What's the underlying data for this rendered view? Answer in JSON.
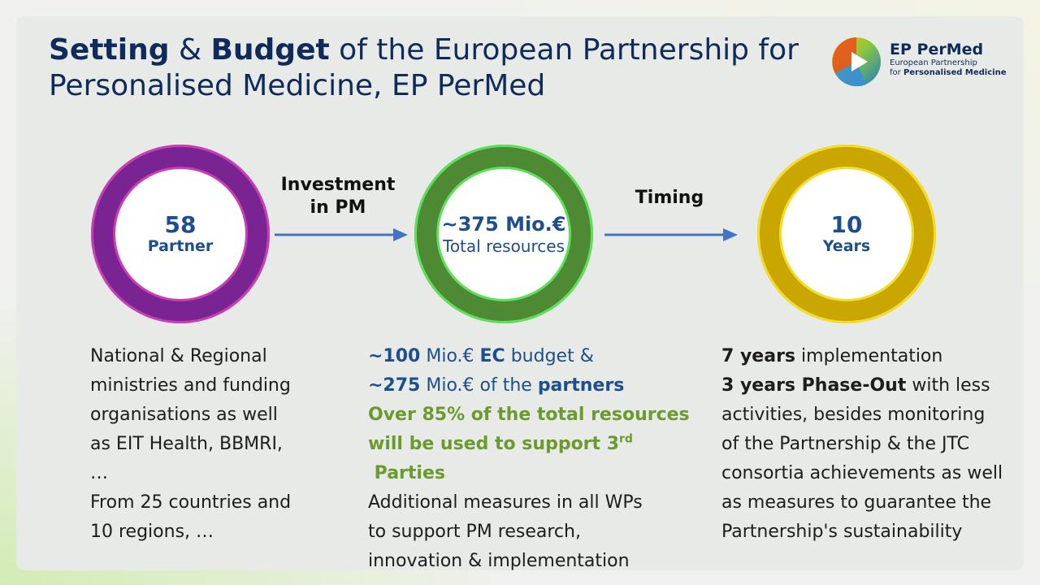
{
  "title": {
    "w1": "Setting",
    "w2": " & ",
    "w3": "Budget",
    "rest": " of the European Partnership for Personalised Medicine, EP PerMed"
  },
  "logo": {
    "name": "EP PerMed",
    "line1": "European Partnership",
    "line2_pre": "for ",
    "line2_bold": "Personalised Medicine"
  },
  "circles": [
    {
      "value": "58",
      "label": "Partner",
      "ring_color": "#7a2494"
    },
    {
      "value": "~375 Mio.€",
      "label": "Total resources",
      "ring_color": "#4e8a34"
    },
    {
      "value": "10",
      "label": "Years",
      "ring_color": "#c9a600"
    }
  ],
  "arrows": [
    {
      "label_line1": "Investment",
      "label_line2": "in PM"
    },
    {
      "label_line1": "Timing",
      "label_line2": ""
    }
  ],
  "col1": {
    "lines": [
      "National & Regional",
      "ministries and funding",
      "organisations as well",
      "as EIT Health, BBMRI,",
      "…",
      "From 25 countries and",
      "10 regions, …"
    ]
  },
  "col2": {
    "l1_a": "~100",
    "l1_b": " Mio.€ ",
    "l1_c": "EC",
    "l1_d": " budget &",
    "l2_a": "~275",
    "l2_b": " Mio.€ of the ",
    "l2_c": "partners",
    "l3": "Over 85% of the total resources",
    "l4_a": "will be used to support 3",
    "l4_sup": "rd",
    "l4_b": " Parties",
    "l5": "Additional measures in all WPs",
    "l6": "to support PM research,",
    "l7": "innovation & implementation"
  },
  "col3": {
    "l1_a": "7 years",
    "l1_b": " implementation",
    "l2_a": "3 years Phase-Out",
    "l2_b": " with less",
    "l3": "activities, besides monitoring",
    "l4": "of the Partnership & the JTC",
    "l5": "consortia achievements as well",
    "l6": "as measures to guarantee the",
    "l7": "Partnership's sustainability"
  }
}
